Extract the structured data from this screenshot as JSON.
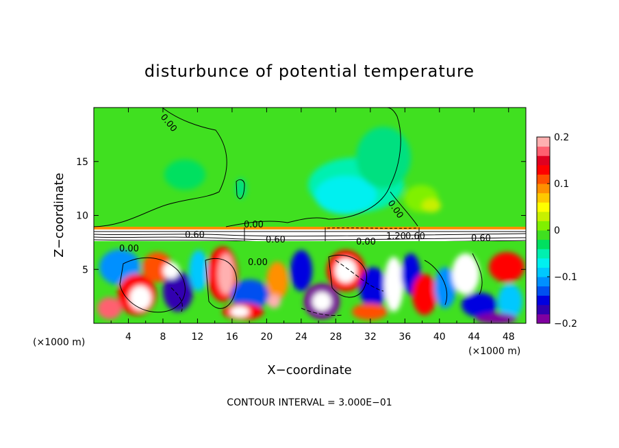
{
  "chart_data": {
    "type": "heatmap",
    "title": "disturbunce of potential temperature",
    "xlabel": "X−coordinate",
    "ylabel": "Z−coordinate",
    "x_unit": "(×1000 m)",
    "x_unit_right": "(×1000 m)",
    "xlim": [
      0,
      50
    ],
    "ylim": [
      0,
      20
    ],
    "x_ticks": [
      4,
      8,
      12,
      16,
      20,
      24,
      28,
      32,
      36,
      40,
      44,
      48
    ],
    "x_tick_labels": [
      "4",
      "8",
      "12",
      "16",
      "20",
      "24",
      "28",
      "32",
      "36",
      "40",
      "44",
      "48"
    ],
    "y_ticks": [
      5,
      10,
      15
    ],
    "y_tick_labels": [
      "5",
      "10",
      "15"
    ],
    "colorbar": {
      "min": -0.2,
      "max": 0.2,
      "tick_values": [
        0.2,
        0.1,
        0,
        -0.1,
        -0.2
      ],
      "tick_labels": [
        "0.2",
        "0.1",
        "0",
        "−0.1",
        "−0.2"
      ],
      "colors": [
        "#8000a0",
        "#3000b0",
        "#0000e0",
        "#0050f0",
        "#0090ff",
        "#00c8ff",
        "#00f0f0",
        "#00f0b0",
        "#00e060",
        "#40e020",
        "#80f000",
        "#c8f000",
        "#ffff00",
        "#ffc800",
        "#ff9000",
        "#ff5000",
        "#ff0000",
        "#e00020",
        "#ff6070",
        "#ffb0b0"
      ]
    },
    "contour_labels": [
      "0.00",
      "0.00",
      "0.00",
      "0.00",
      "0.60",
      "0.60",
      "0.00",
      "1.20",
      "0.60",
      "0.60",
      "0.00"
    ],
    "contour_interval_text": "CONTOUR INTERVAL = 3.000E−01"
  }
}
